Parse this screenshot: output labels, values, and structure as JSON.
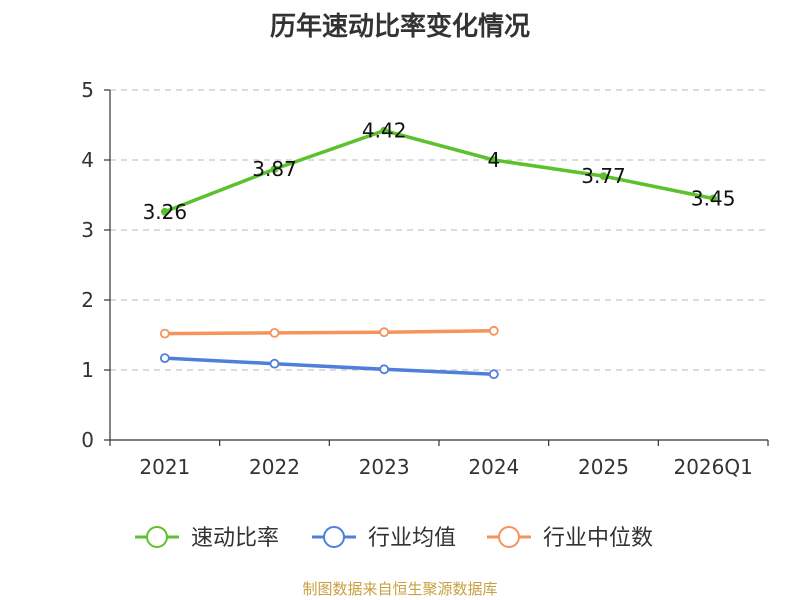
{
  "chart_data": {
    "type": "line",
    "title": "历年速动比率变化情况",
    "categories": [
      "2021",
      "2022",
      "2023",
      "2024",
      "2025",
      "2026Q1"
    ],
    "ylim": [
      0,
      5
    ],
    "yticks": [
      "0",
      "1",
      "2",
      "3",
      "4",
      "5"
    ],
    "grid": true,
    "legend_position": "bottom",
    "series": [
      {
        "name": "速动比率",
        "color": "#5cc12d",
        "values": [
          3.26,
          3.87,
          4.42,
          4.0,
          3.77,
          3.45
        ],
        "labels": [
          "3.26",
          "3.87",
          "4.42",
          "4",
          "3.77",
          "3.45"
        ]
      },
      {
        "name": "行业均值",
        "color": "#4f7fd8",
        "values": [
          1.17,
          1.09,
          1.01,
          0.94,
          null,
          null
        ]
      },
      {
        "name": "行业中位数",
        "color": "#f5935a",
        "values": [
          1.52,
          1.53,
          1.54,
          1.56,
          null,
          null
        ]
      }
    ]
  },
  "footer": {
    "source": "制图数据来自恒生聚源数据库"
  }
}
